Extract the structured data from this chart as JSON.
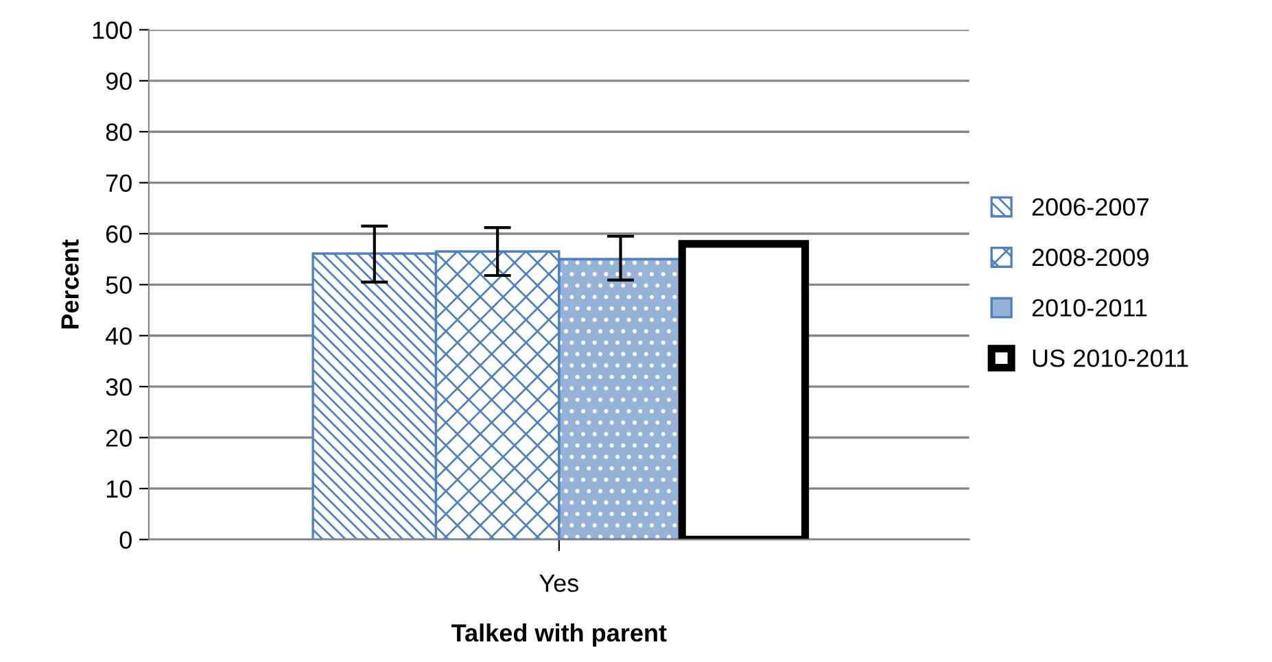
{
  "chart_data": {
    "type": "bar",
    "xlabel": "Talked with parent",
    "ylabel": "Percent",
    "categories": [
      "Yes"
    ],
    "series": [
      {
        "name": "2006-2007",
        "color": "#4f81bd",
        "values": [
          56.1
        ],
        "errors": [
          [
            50.5,
            61.5
          ]
        ]
      },
      {
        "name": "2008-2009",
        "color": "#4f81bd",
        "values": [
          56.5
        ],
        "errors": [
          [
            51.8,
            61.2
          ]
        ]
      },
      {
        "name": "2010-2011",
        "color": "#95b3d7",
        "values": [
          55.0
        ],
        "errors": [
          [
            50.9,
            59.5
          ]
        ]
      },
      {
        "name": "US 2010-2011",
        "color": "#000000",
        "values": [
          58.0
        ]
      }
    ],
    "ylim": [
      0,
      100
    ],
    "yticks": [
      0,
      10,
      20,
      30,
      40,
      50,
      60,
      70,
      80,
      90,
      100
    ],
    "grid": "y",
    "legend": "right"
  }
}
